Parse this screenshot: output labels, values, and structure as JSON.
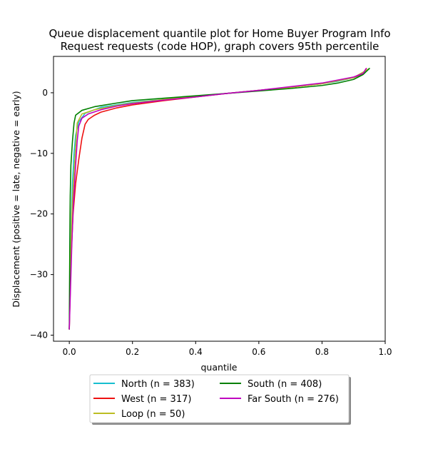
{
  "chart_data": {
    "type": "line",
    "title_lines": [
      "Queue displacement quantile plot for Home Buyer Program Info",
      "Request  requests (code HOP), graph covers 95th percentile"
    ],
    "xlabel": "quantile",
    "ylabel": "Displacement (positive = late, negative = early)",
    "xlim": [
      -0.05,
      1.0
    ],
    "ylim": [
      -41,
      6
    ],
    "xticks": [
      0.0,
      0.2,
      0.4,
      0.6,
      0.8,
      1.0
    ],
    "xtick_labels": [
      "0.0",
      "0.2",
      "0.4",
      "0.6",
      "0.8",
      "1.0"
    ],
    "yticks": [
      0,
      -10,
      -20,
      -30,
      -40
    ],
    "ytick_labels": [
      "0",
      "−10",
      "−20",
      "−30",
      "−40"
    ],
    "legend_position": "below",
    "series": [
      {
        "name": "North (n = 383)",
        "color": "#17becf",
        "points": [
          [
            0.0,
            -39
          ],
          [
            0.003,
            -30
          ],
          [
            0.006,
            -22
          ],
          [
            0.01,
            -15
          ],
          [
            0.015,
            -10
          ],
          [
            0.02,
            -7
          ],
          [
            0.03,
            -4.8
          ],
          [
            0.05,
            -3.4
          ],
          [
            0.1,
            -2.4
          ],
          [
            0.2,
            -1.6
          ],
          [
            0.3,
            -1.1
          ],
          [
            0.4,
            -0.6
          ],
          [
            0.5,
            -0.1
          ],
          [
            0.6,
            0.4
          ],
          [
            0.7,
            0.9
          ],
          [
            0.8,
            1.5
          ],
          [
            0.85,
            1.9
          ],
          [
            0.9,
            2.5
          ],
          [
            0.93,
            3.1
          ],
          [
            0.95,
            4.0
          ]
        ]
      },
      {
        "name": "West (n = 317)",
        "color": "#ee1111",
        "points": [
          [
            0.0,
            -39
          ],
          [
            0.005,
            -28
          ],
          [
            0.012,
            -20
          ],
          [
            0.02,
            -15
          ],
          [
            0.03,
            -11
          ],
          [
            0.04,
            -7.5
          ],
          [
            0.05,
            -5.2
          ],
          [
            0.06,
            -4.4
          ],
          [
            0.08,
            -3.7
          ],
          [
            0.1,
            -3.2
          ],
          [
            0.15,
            -2.5
          ],
          [
            0.2,
            -2.0
          ],
          [
            0.3,
            -1.3
          ],
          [
            0.4,
            -0.7
          ],
          [
            0.5,
            -0.1
          ],
          [
            0.6,
            0.4
          ],
          [
            0.7,
            0.9
          ],
          [
            0.8,
            1.5
          ],
          [
            0.9,
            2.5
          ],
          [
            0.93,
            3.2
          ],
          [
            0.94,
            4.0
          ]
        ]
      },
      {
        "name": "Loop (n = 50)",
        "color": "#bcbd22",
        "points": [
          [
            0.0,
            -39
          ],
          [
            0.004,
            -28
          ],
          [
            0.008,
            -20
          ],
          [
            0.013,
            -15
          ],
          [
            0.02,
            -9
          ],
          [
            0.025,
            -5
          ],
          [
            0.04,
            -3.5
          ],
          [
            0.08,
            -2.8
          ],
          [
            0.15,
            -2.1
          ],
          [
            0.2,
            -1.7
          ],
          [
            0.3,
            -1.1
          ],
          [
            0.4,
            -0.6
          ],
          [
            0.5,
            -0.1
          ],
          [
            0.6,
            0.4
          ],
          [
            0.7,
            0.9
          ],
          [
            0.8,
            1.5
          ],
          [
            0.9,
            2.5
          ],
          [
            0.95,
            4.0
          ]
        ]
      },
      {
        "name": "South (n = 408)",
        "color": "#008000",
        "points": [
          [
            0.0,
            -39
          ],
          [
            0.001,
            -30
          ],
          [
            0.002,
            -22
          ],
          [
            0.003,
            -17
          ],
          [
            0.005,
            -12
          ],
          [
            0.01,
            -8
          ],
          [
            0.015,
            -5
          ],
          [
            0.02,
            -3.7
          ],
          [
            0.04,
            -2.9
          ],
          [
            0.08,
            -2.3
          ],
          [
            0.15,
            -1.7
          ],
          [
            0.2,
            -1.3
          ],
          [
            0.3,
            -0.9
          ],
          [
            0.4,
            -0.5
          ],
          [
            0.5,
            -0.1
          ],
          [
            0.6,
            0.3
          ],
          [
            0.7,
            0.7
          ],
          [
            0.8,
            1.2
          ],
          [
            0.85,
            1.6
          ],
          [
            0.9,
            2.2
          ],
          [
            0.93,
            3.0
          ],
          [
            0.95,
            4.0
          ]
        ]
      },
      {
        "name": "Far South (n = 276)",
        "color": "#bf00bf",
        "points": [
          [
            0.0,
            -39
          ],
          [
            0.004,
            -32
          ],
          [
            0.008,
            -25
          ],
          [
            0.013,
            -18
          ],
          [
            0.02,
            -12
          ],
          [
            0.025,
            -8
          ],
          [
            0.03,
            -5.5
          ],
          [
            0.04,
            -4.2
          ],
          [
            0.06,
            -3.5
          ],
          [
            0.1,
            -2.8
          ],
          [
            0.15,
            -2.2
          ],
          [
            0.2,
            -1.8
          ],
          [
            0.3,
            -1.2
          ],
          [
            0.4,
            -0.7
          ],
          [
            0.5,
            -0.1
          ],
          [
            0.6,
            0.4
          ],
          [
            0.7,
            1.0
          ],
          [
            0.8,
            1.6
          ],
          [
            0.9,
            2.6
          ],
          [
            0.93,
            3.2
          ],
          [
            0.94,
            4.0
          ]
        ]
      }
    ],
    "legend_layout": [
      0,
      1,
      2,
      3,
      4
    ]
  }
}
